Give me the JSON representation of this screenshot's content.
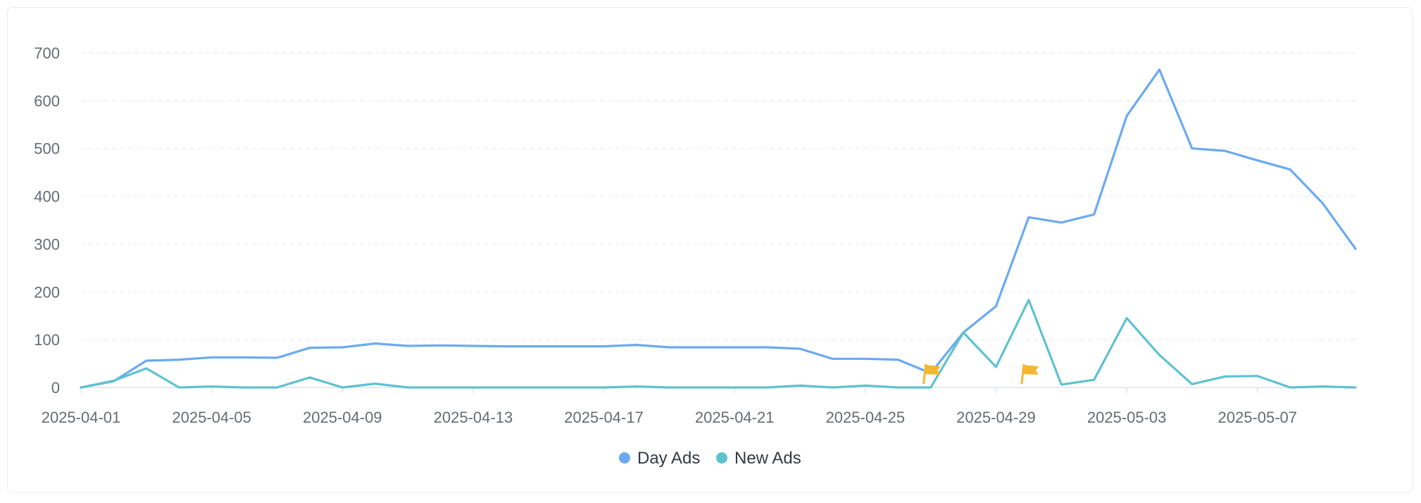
{
  "chart_data": {
    "type": "line",
    "x": [
      "2025-04-01",
      "2025-04-02",
      "2025-04-03",
      "2025-04-04",
      "2025-04-05",
      "2025-04-06",
      "2025-04-07",
      "2025-04-08",
      "2025-04-09",
      "2025-04-10",
      "2025-04-11",
      "2025-04-12",
      "2025-04-13",
      "2025-04-14",
      "2025-04-15",
      "2025-04-16",
      "2025-04-17",
      "2025-04-18",
      "2025-04-19",
      "2025-04-20",
      "2025-04-21",
      "2025-04-22",
      "2025-04-23",
      "2025-04-24",
      "2025-04-25",
      "2025-04-26",
      "2025-04-27",
      "2025-04-28",
      "2025-04-29",
      "2025-04-30",
      "2025-05-01",
      "2025-05-02",
      "2025-05-03",
      "2025-05-04",
      "2025-05-05",
      "2025-05-06",
      "2025-05-07",
      "2025-05-08",
      "2025-05-09",
      "2025-05-10"
    ],
    "x_tick_labels": [
      "2025-04-01",
      "2025-04-05",
      "2025-04-09",
      "2025-04-13",
      "2025-04-17",
      "2025-04-21",
      "2025-04-25",
      "2025-04-29",
      "2025-05-03",
      "2025-05-07"
    ],
    "series": [
      {
        "name": "Day Ads",
        "color": "#6aaaf0",
        "values": [
          0,
          13,
          56,
          58,
          63,
          63,
          62,
          83,
          84,
          92,
          87,
          88,
          87,
          86,
          86,
          86,
          86,
          89,
          84,
          84,
          84,
          84,
          81,
          60,
          60,
          58,
          30,
          115,
          170,
          356,
          345,
          362,
          568,
          665,
          500,
          495,
          475,
          456,
          385,
          290
        ]
      },
      {
        "name": "New Ads",
        "color": "#5ec2cf",
        "values": [
          0,
          14,
          40,
          0,
          2,
          0,
          0,
          21,
          0,
          8,
          0,
          0,
          0,
          0,
          0,
          0,
          0,
          2,
          0,
          0,
          0,
          0,
          4,
          0,
          4,
          0,
          0,
          115,
          43,
          183,
          6,
          16,
          145,
          68,
          7,
          23,
          24,
          0,
          2,
          0
        ]
      }
    ],
    "ylim": [
      0,
      700
    ],
    "y_ticks": [
      0,
      100,
      200,
      300,
      400,
      500,
      600,
      700
    ],
    "grid": true,
    "legend": "bottom-center",
    "markers": [
      {
        "name": "flag",
        "x": "2025-04-27",
        "color": "#f5b731"
      },
      {
        "name": "flag",
        "x": "2025-04-30",
        "color": "#f5b731"
      }
    ]
  }
}
